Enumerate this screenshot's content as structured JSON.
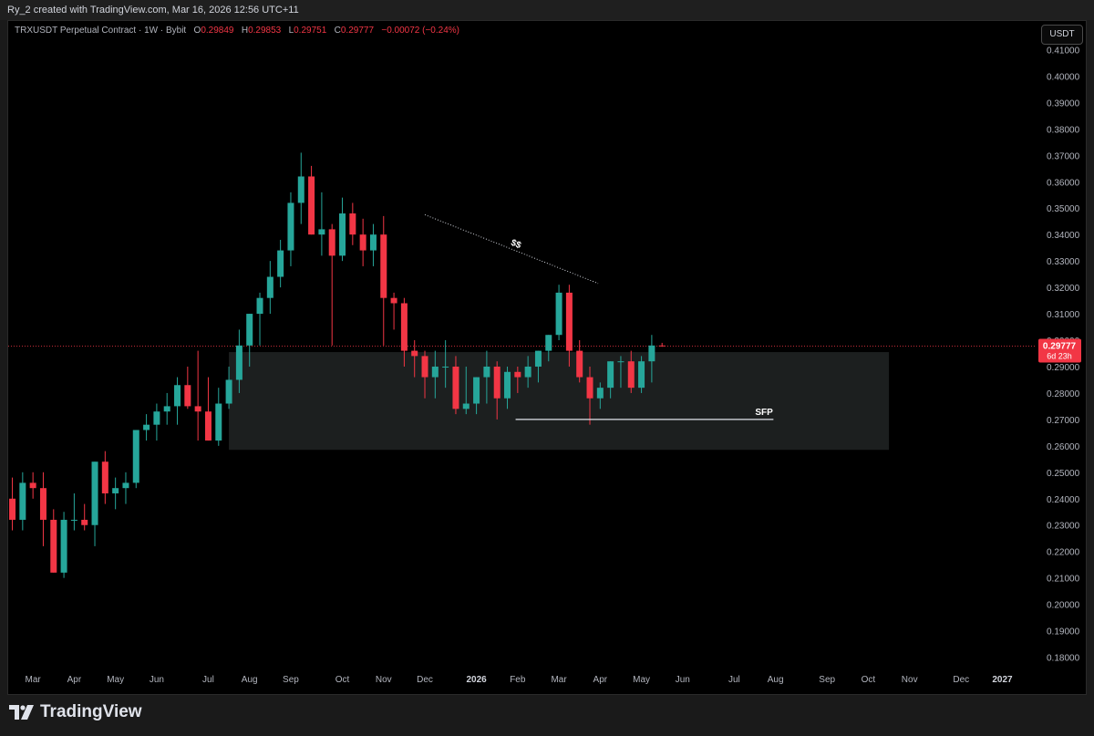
{
  "header": {
    "caption": "Ry_2 created with TradingView.com, Mar 16, 2026 12:56 UTC+11"
  },
  "legend": {
    "symbol": "TRXUSDT Perpetual Contract · 1W · Bybit",
    "o_label": "O",
    "o": "0.29849",
    "h_label": "H",
    "h": "0.29853",
    "l_label": "L",
    "l": "0.29751",
    "c_label": "C",
    "c": "0.29777",
    "change": "−0.00072 (−0.24%)"
  },
  "currency_button": "USDT",
  "brand": {
    "name": "TradingView",
    "icon": "tradingview-logo-icon"
  },
  "colors": {
    "up": "#26a69a",
    "down": "#f23645",
    "background": "#000000",
    "zone": "#1c1f1f",
    "axis_text": "#b2b5be"
  },
  "chart_data": {
    "type": "candlestick",
    "timeframe": "1W",
    "ylim": [
      0.175,
      0.415
    ],
    "y_ticks": [
      "0.41000",
      "0.40000",
      "0.39000",
      "0.38000",
      "0.37000",
      "0.36000",
      "0.35000",
      "0.34000",
      "0.33000",
      "0.32000",
      "0.31000",
      "0.30000",
      "0.29000",
      "0.28000",
      "0.27000",
      "0.26000",
      "0.25000",
      "0.24000",
      "0.23000",
      "0.22000",
      "0.21000",
      "0.20000",
      "0.19000",
      "0.18000"
    ],
    "x_ticks": [
      {
        "label": "Mar",
        "week": 2
      },
      {
        "label": "Apr",
        "week": 6
      },
      {
        "label": "May",
        "week": 10
      },
      {
        "label": "Jun",
        "week": 14
      },
      {
        "label": "Jul",
        "week": 19
      },
      {
        "label": "Aug",
        "week": 23
      },
      {
        "label": "Sep",
        "week": 27
      },
      {
        "label": "Oct",
        "week": 32
      },
      {
        "label": "Nov",
        "week": 36
      },
      {
        "label": "Dec",
        "week": 40
      },
      {
        "label": "2026",
        "week": 45
      },
      {
        "label": "Feb",
        "week": 49
      },
      {
        "label": "Mar",
        "week": 53
      },
      {
        "label": "Apr",
        "week": 57
      },
      {
        "label": "May",
        "week": 61
      },
      {
        "label": "Jun",
        "week": 65
      },
      {
        "label": "Jul",
        "week": 70
      },
      {
        "label": "Aug",
        "week": 74
      },
      {
        "label": "Sep",
        "week": 79
      },
      {
        "label": "Oct",
        "week": 83
      },
      {
        "label": "Nov",
        "week": 87
      },
      {
        "label": "Dec",
        "week": 92
      },
      {
        "label": "2027",
        "week": 96
      }
    ],
    "week_range": [
      -0.4,
      97.9
    ],
    "candles": [
      [
        0.24,
        0.248,
        0.228,
        0.232
      ],
      [
        0.232,
        0.25,
        0.228,
        0.246
      ],
      [
        0.246,
        0.25,
        0.24,
        0.244
      ],
      [
        0.244,
        0.25,
        0.222,
        0.232
      ],
      [
        0.232,
        0.236,
        0.212,
        0.212
      ],
      [
        0.212,
        0.235,
        0.21,
        0.232
      ],
      [
        0.232,
        0.242,
        0.228,
        0.232
      ],
      [
        0.232,
        0.238,
        0.228,
        0.23
      ],
      [
        0.23,
        0.254,
        0.222,
        0.254
      ],
      [
        0.254,
        0.258,
        0.238,
        0.242
      ],
      [
        0.242,
        0.248,
        0.236,
        0.244
      ],
      [
        0.244,
        0.25,
        0.238,
        0.246
      ],
      [
        0.246,
        0.266,
        0.244,
        0.266
      ],
      [
        0.266,
        0.272,
        0.262,
        0.268
      ],
      [
        0.268,
        0.276,
        0.262,
        0.273
      ],
      [
        0.273,
        0.28,
        0.268,
        0.275
      ],
      [
        0.275,
        0.286,
        0.268,
        0.283
      ],
      [
        0.283,
        0.29,
        0.274,
        0.275
      ],
      [
        0.275,
        0.296,
        0.262,
        0.273
      ],
      [
        0.273,
        0.286,
        0.262,
        0.262
      ],
      [
        0.262,
        0.282,
        0.26,
        0.276
      ],
      [
        0.276,
        0.29,
        0.274,
        0.285
      ],
      [
        0.285,
        0.304,
        0.28,
        0.298
      ],
      [
        0.298,
        0.31,
        0.29,
        0.31
      ],
      [
        0.31,
        0.318,
        0.298,
        0.316
      ],
      [
        0.316,
        0.33,
        0.31,
        0.324
      ],
      [
        0.324,
        0.338,
        0.32,
        0.334
      ],
      [
        0.334,
        0.356,
        0.328,
        0.352
      ],
      [
        0.352,
        0.371,
        0.344,
        0.362
      ],
      [
        0.362,
        0.366,
        0.34,
        0.34
      ],
      [
        0.34,
        0.356,
        0.332,
        0.342
      ],
      [
        0.342,
        0.344,
        0.298,
        0.332
      ],
      [
        0.332,
        0.354,
        0.33,
        0.348
      ],
      [
        0.348,
        0.352,
        0.336,
        0.34
      ],
      [
        0.34,
        0.346,
        0.328,
        0.334
      ],
      [
        0.334,
        0.344,
        0.328,
        0.34
      ],
      [
        0.34,
        0.347,
        0.298,
        0.316
      ],
      [
        0.316,
        0.318,
        0.304,
        0.314
      ],
      [
        0.314,
        0.316,
        0.29,
        0.296
      ],
      [
        0.296,
        0.3,
        0.286,
        0.294
      ],
      [
        0.294,
        0.296,
        0.278,
        0.286
      ],
      [
        0.286,
        0.296,
        0.278,
        0.29
      ],
      [
        0.29,
        0.3,
        0.282,
        0.29
      ],
      [
        0.29,
        0.294,
        0.272,
        0.274
      ],
      [
        0.274,
        0.29,
        0.272,
        0.276
      ],
      [
        0.276,
        0.286,
        0.272,
        0.286
      ],
      [
        0.286,
        0.296,
        0.276,
        0.29
      ],
      [
        0.29,
        0.292,
        0.27,
        0.278
      ],
      [
        0.278,
        0.29,
        0.274,
        0.288
      ],
      [
        0.288,
        0.29,
        0.28,
        0.286
      ],
      [
        0.286,
        0.294,
        0.282,
        0.29
      ],
      [
        0.29,
        0.296,
        0.284,
        0.296
      ],
      [
        0.296,
        0.302,
        0.292,
        0.302
      ],
      [
        0.302,
        0.321,
        0.3,
        0.318
      ],
      [
        0.318,
        0.321,
        0.29,
        0.296
      ],
      [
        0.296,
        0.3,
        0.284,
        0.286
      ],
      [
        0.286,
        0.29,
        0.268,
        0.278
      ],
      [
        0.278,
        0.284,
        0.274,
        0.282
      ],
      [
        0.282,
        0.292,
        0.278,
        0.292
      ],
      [
        0.292,
        0.294,
        0.282,
        0.292
      ],
      [
        0.292,
        0.296,
        0.28,
        0.282
      ],
      [
        0.282,
        0.294,
        0.28,
        0.292
      ],
      [
        0.292,
        0.302,
        0.284,
        0.298
      ],
      [
        0.298,
        0.299,
        0.2975,
        0.2978
      ]
    ],
    "zone": {
      "week_start": 21,
      "week_end": 85,
      "top": 0.2955,
      "bottom": 0.2585,
      "label": ""
    },
    "annotations": [
      {
        "type": "dotted-line",
        "from": [
          40,
          0.3475
        ],
        "to": [
          56.8,
          0.3215
        ],
        "label": "$$"
      },
      {
        "type": "line",
        "from": [
          48.8,
          0.27
        ],
        "to": [
          73.8,
          0.27
        ],
        "label": "SFP"
      }
    ],
    "price_line": {
      "value": 0.29777,
      "label": "0.29777",
      "countdown": "6d 23h"
    }
  }
}
